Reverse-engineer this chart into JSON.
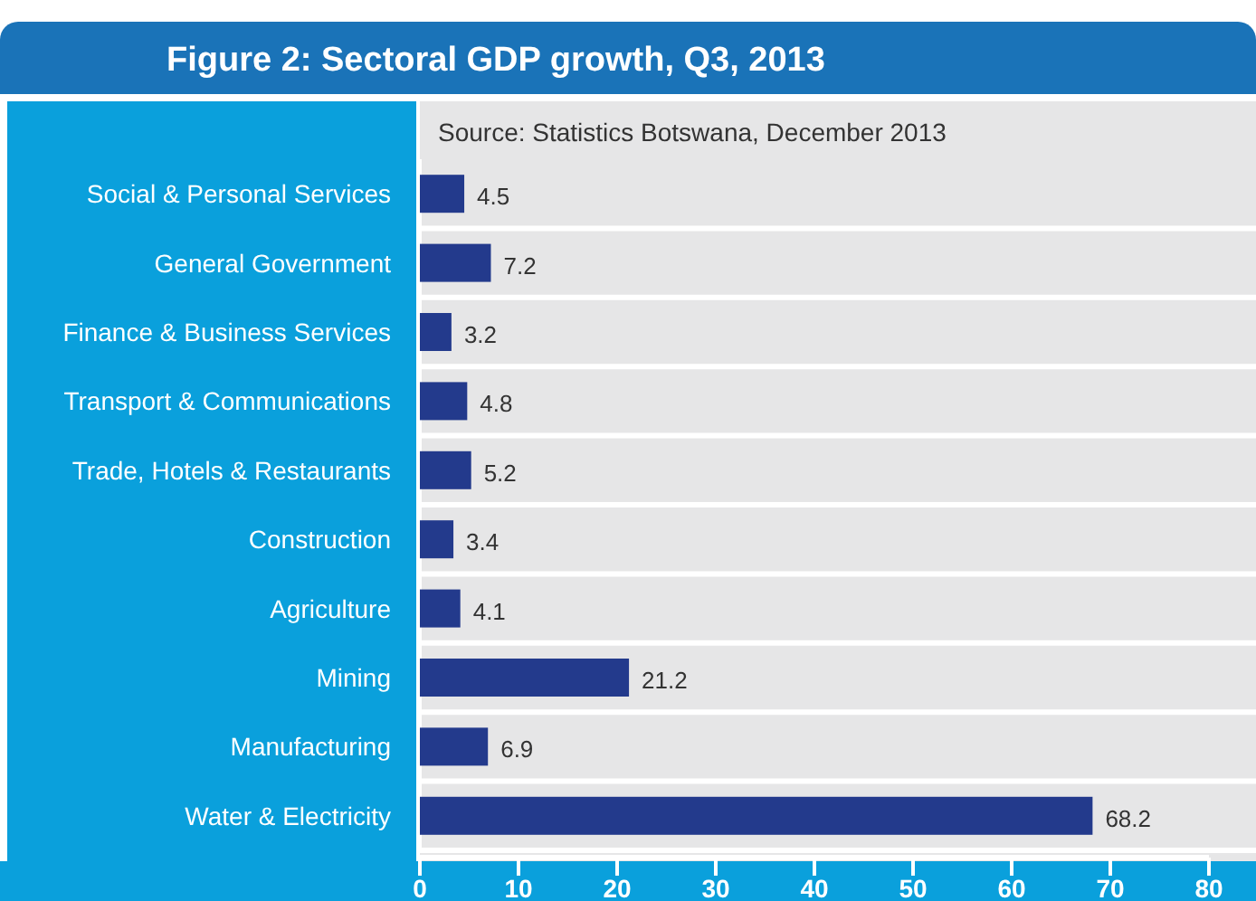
{
  "chart_data": {
    "type": "bar",
    "orientation": "horizontal",
    "title": "Figure 2: Sectoral GDP growth, Q3, 2013",
    "annotations": [
      "Source: Statistics Botswana, December 2013"
    ],
    "categories": [
      "Social & Personal Services",
      "General Government",
      "Finance & Business Services",
      "Transport & Communications",
      "Trade, Hotels & Restaurants",
      "Construction",
      "Agriculture",
      "Mining",
      "Manufacturing",
      "Water & Electricity"
    ],
    "values": [
      4.5,
      7.2,
      3.2,
      4.8,
      5.2,
      3.4,
      4.1,
      21.2,
      6.9,
      68.2
    ],
    "color": "#233a8c",
    "xlim": [
      0,
      80
    ],
    "xticks": [
      0,
      10,
      20,
      30,
      40,
      50,
      60,
      70,
      80
    ],
    "data_labels": true
  }
}
